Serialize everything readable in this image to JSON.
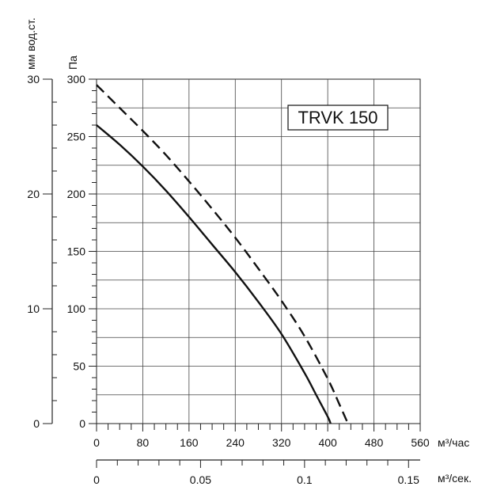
{
  "chart_data": {
    "type": "line",
    "title": "TRVK 150",
    "x_unit_label": "м³/час",
    "x2_unit_label": "м³/сек.",
    "y_left_unit_label": "мм вод.ст.",
    "y_unit_label": "Па",
    "x_ticks": [
      "0",
      "80",
      "160",
      "240",
      "320",
      "400",
      "480",
      "560"
    ],
    "x2_ticks": [
      "0",
      "0.05",
      "0.1",
      "0.15"
    ],
    "y_ticks": [
      "0",
      "50",
      "100",
      "150",
      "200",
      "250",
      "300"
    ],
    "y_left_ticks": [
      "0",
      "10",
      "20",
      "30"
    ],
    "xlim": [
      0,
      560
    ],
    "x2lim": [
      0,
      0.1556
    ],
    "ylim": [
      0,
      300
    ],
    "y_left_lim": [
      0,
      30
    ],
    "grid": true,
    "series": [
      {
        "style": "solid",
        "x": [
          0,
          40,
          80,
          120,
          160,
          200,
          240,
          280,
          320,
          360,
          380,
          400,
          405
        ],
        "y": [
          260,
          243,
          224,
          203,
          180,
          156,
          132,
          106,
          78,
          44,
          25,
          6,
          0
        ]
      },
      {
        "style": "dashed",
        "x": [
          0,
          40,
          80,
          120,
          160,
          200,
          240,
          280,
          320,
          360,
          400,
          420,
          435
        ],
        "y": [
          295,
          275,
          255,
          234,
          211,
          187,
          162,
          135,
          107,
          76,
          39,
          17,
          0
        ]
      }
    ]
  }
}
